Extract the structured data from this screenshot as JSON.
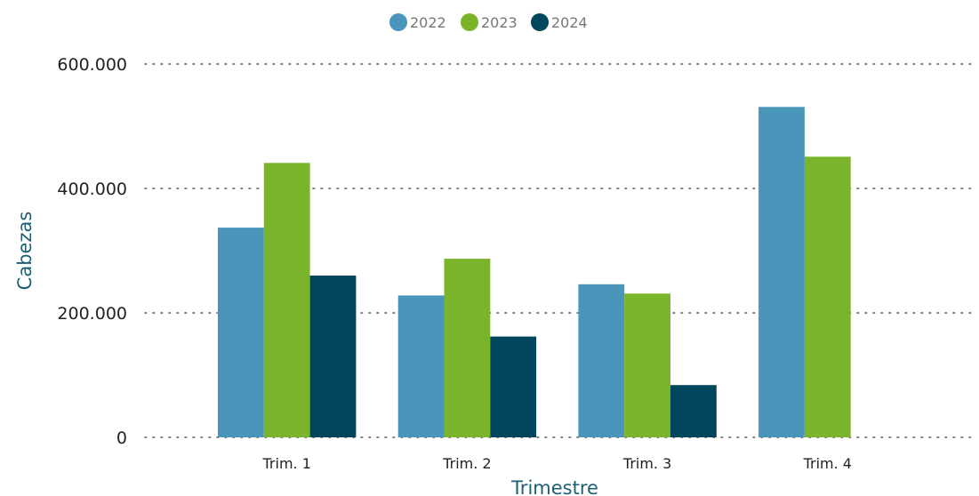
{
  "chart_data": {
    "type": "bar",
    "categories": [
      "Trim. 1",
      "Trim. 2",
      "Trim. 3",
      "Trim. 4"
    ],
    "series": [
      {
        "name": "2022",
        "color": "#4a95ba",
        "values": [
          337000,
          228000,
          246000,
          531000
        ]
      },
      {
        "name": "2023",
        "color": "#79b42a",
        "values": [
          441000,
          287000,
          231000,
          451000
        ]
      },
      {
        "name": "2024",
        "color": "#00475e",
        "values": [
          260000,
          162000,
          84000,
          null
        ]
      }
    ],
    "xlabel": "Trimestre",
    "ylabel": "Cabezas",
    "ylim": [
      0,
      600000
    ],
    "yticks": [
      0,
      200000,
      400000,
      600000
    ],
    "ytick_labels": [
      "0",
      "200.000",
      "400.000",
      "600.000"
    ],
    "grid": true,
    "legend_position": "top-center",
    "axis_title_color": "#1f5f73"
  }
}
